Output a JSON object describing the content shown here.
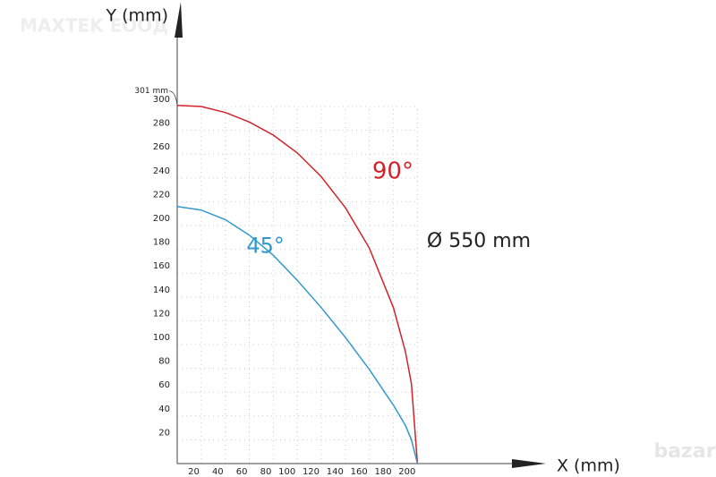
{
  "chart_data": {
    "type": "line",
    "x": [
      0,
      20,
      40,
      60,
      80,
      100,
      120,
      140,
      160,
      180,
      190,
      195,
      200
    ],
    "series": [
      {
        "name": "90°",
        "color": "#d2232a",
        "values": [
          301,
          300,
          295,
          287,
          276,
          261,
          241,
          215,
          181,
          131,
          94,
          67,
          0
        ]
      },
      {
        "name": "45°",
        "color": "#3399cc",
        "values": [
          216,
          213,
          205,
          192,
          175,
          154,
          131,
          106,
          79,
          49,
          32,
          20,
          0
        ]
      }
    ],
    "xlabel": "X (mm)",
    "ylabel": "Y (mm)",
    "xlim": [
      0,
      307
    ],
    "ylim": [
      0,
      382
    ],
    "xticks": [
      20,
      40,
      60,
      80,
      100,
      120,
      140,
      160,
      180,
      200
    ],
    "yticks": [
      20,
      40,
      60,
      80,
      100,
      120,
      140,
      160,
      180,
      200,
      220,
      240,
      260,
      280,
      300
    ],
    "grid": true,
    "annotations": [
      "301 mm",
      "Ø 550 mm"
    ],
    "watermarks": [
      "MAXTEK EOOД",
      "bazar"
    ]
  }
}
